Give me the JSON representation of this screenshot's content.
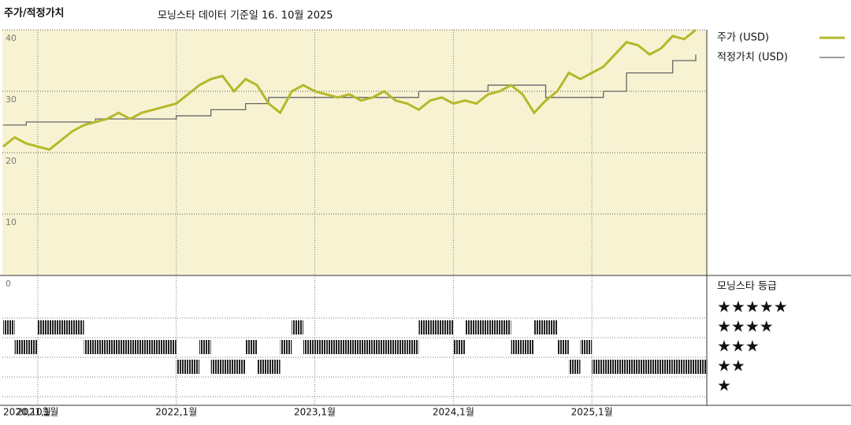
{
  "chart_data": {
    "type": "line",
    "title": "주가/적정가치",
    "subtitle": "모닝스타 데이터 기준일 16. 10월 2025",
    "x": [
      "2020-10",
      "2020-11",
      "2020-12",
      "2021-01",
      "2021-02",
      "2021-03",
      "2021-04",
      "2021-05",
      "2021-06",
      "2021-07",
      "2021-08",
      "2021-09",
      "2021-10",
      "2021-11",
      "2021-12",
      "2022-01",
      "2022-02",
      "2022-03",
      "2022-04",
      "2022-05",
      "2022-06",
      "2022-07",
      "2022-08",
      "2022-09",
      "2022-10",
      "2022-11",
      "2022-12",
      "2023-01",
      "2023-02",
      "2023-03",
      "2023-04",
      "2023-05",
      "2023-06",
      "2023-07",
      "2023-08",
      "2023-09",
      "2023-10",
      "2023-11",
      "2023-12",
      "2024-01",
      "2024-02",
      "2024-03",
      "2024-04",
      "2024-05",
      "2024-06",
      "2024-07",
      "2024-08",
      "2024-09",
      "2024-10",
      "2024-11",
      "2024-12",
      "2025-01",
      "2025-02",
      "2025-03",
      "2025-04",
      "2025-05",
      "2025-06",
      "2025-07",
      "2025-08",
      "2025-09",
      "2025-10"
    ],
    "series": [
      {
        "name": "주가 (USD)",
        "color": "#b5b82a",
        "values": [
          21,
          22.5,
          21.5,
          21,
          20.5,
          22,
          23.5,
          24.5,
          25,
          25.5,
          26.5,
          25.5,
          26.5,
          27,
          27.5,
          28,
          29.5,
          31,
          32,
          32.5,
          30,
          32,
          31,
          28,
          26.5,
          30,
          31,
          30,
          29.5,
          29,
          29.5,
          28.5,
          29,
          30,
          28.5,
          28,
          27,
          28.5,
          29,
          28,
          28.5,
          28,
          29.5,
          30,
          31,
          29.5,
          26.5,
          28.5,
          30,
          33,
          32,
          33,
          34,
          36,
          38,
          37.5,
          36,
          37,
          39,
          38.5,
          40
        ]
      },
      {
        "name": "적정가치 (USD)",
        "color": "#666666",
        "values": [
          24.5,
          24.5,
          25,
          25,
          25,
          25,
          25,
          25,
          25.5,
          25.5,
          25.5,
          25.5,
          25.5,
          25.5,
          25.5,
          26,
          26,
          26,
          27,
          27,
          27,
          28,
          28,
          29,
          29,
          29,
          29,
          29,
          29,
          29,
          29,
          29,
          29,
          29,
          29,
          29,
          30,
          30,
          30,
          30,
          30,
          30,
          31,
          31,
          31,
          31,
          31,
          29,
          29,
          29,
          29,
          29,
          30,
          30,
          33,
          33,
          33,
          33,
          35,
          35,
          36
        ]
      }
    ],
    "ylim": [
      0,
      40
    ],
    "yticks": [
      0,
      10,
      20,
      30,
      40
    ],
    "xticks": [
      {
        "value": "2020-10",
        "label": "2020,10월"
      },
      {
        "value": "2021-01",
        "label": "2021,1월"
      },
      {
        "value": "2022-01",
        "label": "2022,1월"
      },
      {
        "value": "2023-01",
        "label": "2023,1월"
      },
      {
        "value": "2024-01",
        "label": "2024,1월"
      },
      {
        "value": "2025-01",
        "label": "2025,1월"
      }
    ],
    "rating_title": "모닝스타 등급",
    "rating_labels": [
      {
        "value": 5,
        "label": "★★★★★"
      },
      {
        "value": 4,
        "label": "★★★★"
      },
      {
        "value": 3,
        "label": "★★★"
      },
      {
        "value": 2,
        "label": "★★"
      },
      {
        "value": 1,
        "label": "★"
      }
    ],
    "ratings": [
      4,
      3,
      3,
      4,
      4,
      4,
      4,
      3,
      3,
      3,
      3,
      3,
      3,
      3,
      3,
      2,
      2,
      3,
      2,
      2,
      2,
      3,
      2,
      2,
      3,
      4,
      3,
      3,
      3,
      3,
      3,
      3,
      3,
      3,
      3,
      3,
      4,
      4,
      4,
      3,
      4,
      4,
      4,
      4,
      3,
      3,
      4,
      4,
      3,
      2,
      3,
      2,
      2,
      2,
      2,
      2,
      2,
      2,
      2,
      2,
      2
    ],
    "background": "#f7f3d2",
    "grid": true
  }
}
